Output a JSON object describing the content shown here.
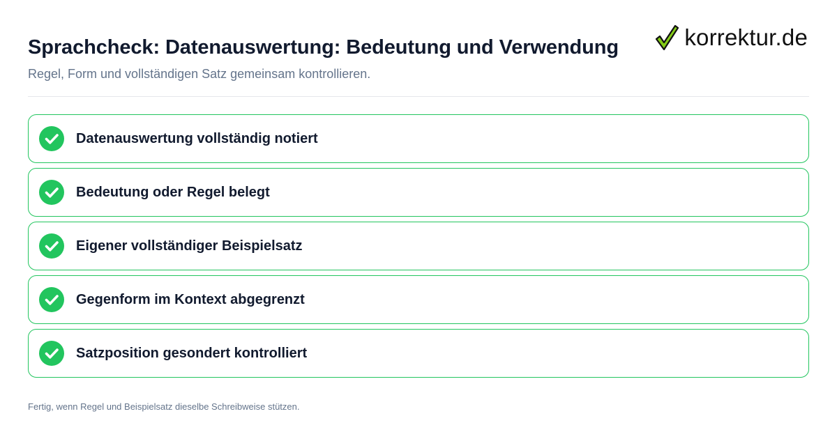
{
  "header": {
    "title": "Sprachcheck: Datenauswertung: Bedeutung und Verwendung",
    "subtitle": "Regel, Form und vollständigen Satz gemeinsam kontrollieren."
  },
  "logo": {
    "text": "korrektur.de",
    "icon": "checkmark-icon"
  },
  "checklist": {
    "items": [
      {
        "label": "Datenauswertung vollständig notiert",
        "checked": true
      },
      {
        "label": "Bedeutung oder Regel belegt",
        "checked": true
      },
      {
        "label": "Eigener vollständiger Beispielsatz",
        "checked": true
      },
      {
        "label": "Gegenform im Kontext abgegrenzt",
        "checked": true
      },
      {
        "label": "Satzposition gesondert kontrolliert",
        "checked": true
      }
    ]
  },
  "footer": {
    "text": "Fertig, wenn Regel und Beispielsatz dieselbe Schreibweise stützen."
  },
  "colors": {
    "accent": "#22c55e",
    "title": "#111a2e",
    "muted": "#64748b",
    "divider": "#e5e7eb",
    "logo_check_fill": "#84cc16",
    "logo_check_stroke": "#111111"
  }
}
